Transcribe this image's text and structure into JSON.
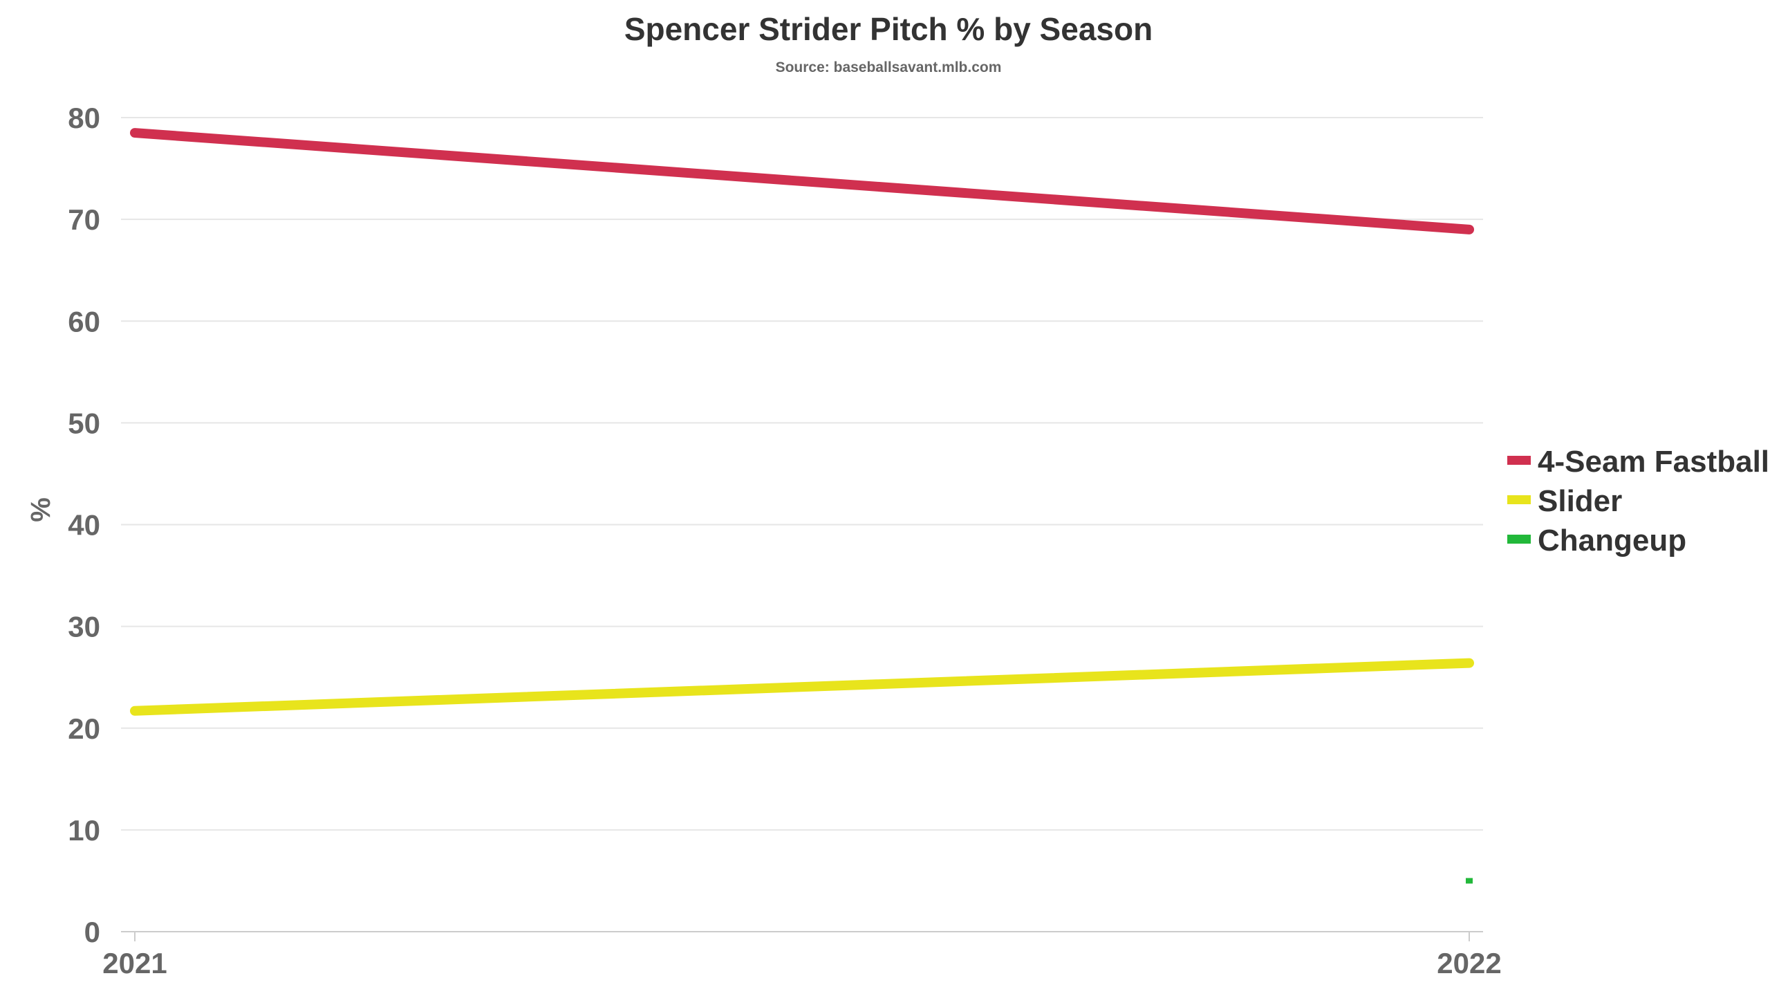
{
  "chart_data": {
    "type": "line",
    "title": "Spencer Strider Pitch % by Season",
    "subtitle": "Source: baseballsavant.mlb.com",
    "xlabel": "",
    "ylabel": "%",
    "categories": [
      "2021",
      "2022"
    ],
    "ylim": [
      0,
      80
    ],
    "yticks": [
      0,
      10,
      20,
      30,
      40,
      50,
      60,
      70,
      80
    ],
    "grid": true,
    "legend_position": "right",
    "series": [
      {
        "name": "4-Seam Fastball",
        "color": "#d0304f",
        "values": [
          78.5,
          69.0
        ]
      },
      {
        "name": "Slider",
        "color": "#e8e41c",
        "values": [
          21.7,
          26.4
        ]
      },
      {
        "name": "Changeup",
        "color": "#22b83a",
        "values": [
          null,
          5.0
        ]
      }
    ]
  }
}
